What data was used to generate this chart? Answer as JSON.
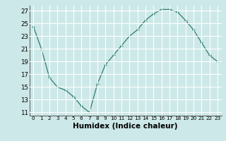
{
  "x": [
    0,
    1,
    2,
    3,
    4,
    5,
    6,
    7,
    8,
    9,
    10,
    11,
    12,
    13,
    14,
    15,
    16,
    17,
    18,
    19,
    20,
    21,
    22,
    23
  ],
  "y": [
    24.5,
    21.0,
    16.5,
    15.0,
    14.5,
    13.5,
    12.0,
    11.0,
    15.5,
    18.5,
    20.0,
    21.5,
    23.0,
    24.0,
    25.5,
    26.5,
    27.2,
    27.2,
    26.8,
    25.5,
    24.0,
    22.0,
    20.0,
    19.0
  ],
  "xlabel": "Humidex (Indice chaleur)",
  "ylim": [
    10.5,
    27.8
  ],
  "xlim": [
    -0.5,
    23.5
  ],
  "yticks": [
    11,
    13,
    15,
    17,
    19,
    21,
    23,
    25,
    27
  ],
  "xticks": [
    0,
    1,
    2,
    3,
    4,
    5,
    6,
    7,
    8,
    9,
    10,
    11,
    12,
    13,
    14,
    15,
    16,
    17,
    18,
    19,
    20,
    21,
    22,
    23
  ],
  "line_color": "#2e7d6e",
  "marker": "+",
  "bg_color": "#cde8e8",
  "grid_color": "#ffffff",
  "tick_fontsize": 6.0,
  "xlabel_fontsize": 7.5
}
